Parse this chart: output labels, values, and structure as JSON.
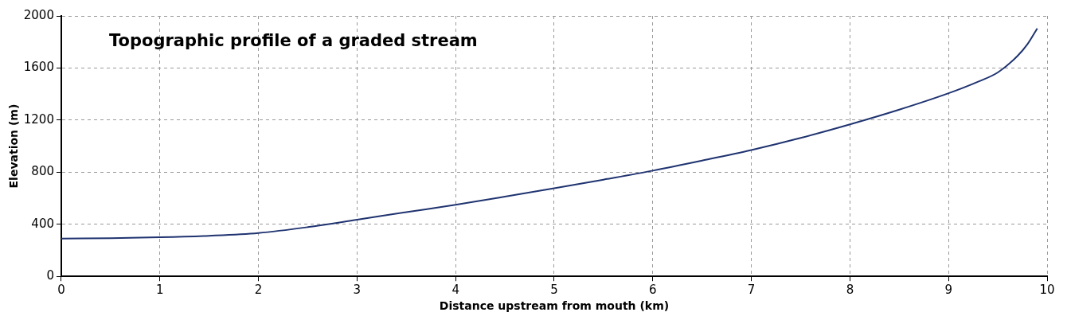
{
  "chart_data": {
    "type": "line",
    "title": "Topographic profile of a graded stream",
    "xlabel": "Distance upstream from mouth (km)",
    "ylabel": "Elevation (m)",
    "x": [
      0,
      0.5,
      1,
      1.5,
      2,
      2.5,
      3,
      3.5,
      4,
      4.5,
      5,
      5.5,
      6,
      6.5,
      7,
      7.5,
      8,
      8.5,
      9,
      9.3,
      9.5,
      9.7,
      9.8,
      9.9
    ],
    "series": [
      {
        "color": "#1f3370",
        "values": [
          290,
          293,
          300,
          312,
          333,
          378,
          435,
          493,
          550,
          612,
          676,
          743,
          812,
          889,
          970,
          1063,
          1167,
          1280,
          1406,
          1495,
          1566,
          1693,
          1782,
          1904
        ]
      }
    ],
    "xlim": [
      0,
      10
    ],
    "xticks": [
      0,
      1,
      2,
      3,
      4,
      5,
      6,
      7,
      8,
      9,
      10
    ],
    "ylim": [
      0,
      2000
    ],
    "yticks": [
      0,
      400,
      800,
      1200,
      1600,
      2000
    ],
    "grid": true,
    "legend": false,
    "marker": "none",
    "line_style": "solid"
  }
}
